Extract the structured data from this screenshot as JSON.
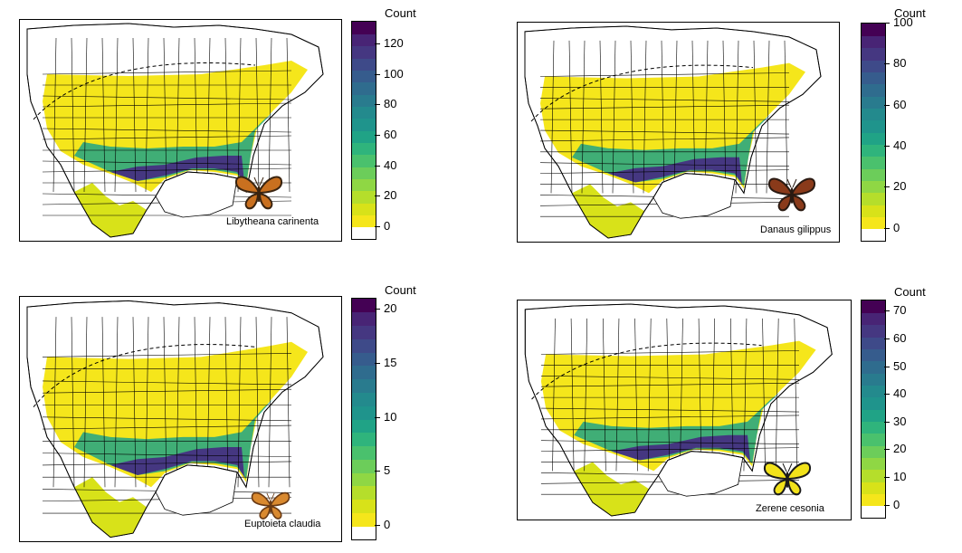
{
  "palette": [
    "#ffffff",
    "#f5e61b",
    "#d8e219",
    "#b5de2b",
    "#8fd744",
    "#6ccd5a",
    "#4ac16d",
    "#2fb47c",
    "#20a386",
    "#1f948c",
    "#238a8d",
    "#297b8e",
    "#2f6c8e",
    "#365c8d",
    "#3e4a89",
    "#453781",
    "#482475",
    "#440154"
  ],
  "panels": [
    {
      "id": "libytheana",
      "species": "Libytheana carinenta",
      "legend_title": "Count",
      "ticks": [
        0,
        20,
        40,
        60,
        80,
        100,
        120
      ],
      "max": 135,
      "butterfly_colors": {
        "wing": "#c9701f",
        "edge": "#3a2410"
      }
    },
    {
      "id": "danaus",
      "species": "Danaus gilippus",
      "legend_title": "Count",
      "ticks": [
        0,
        20,
        40,
        60,
        80,
        100
      ],
      "max": 100,
      "butterfly_colors": {
        "wing": "#8a3a1a",
        "edge": "#2a1a12"
      }
    },
    {
      "id": "euptoieta",
      "species": "Euptoieta claudia",
      "legend_title": "Count",
      "ticks": [
        0,
        5,
        10,
        15,
        20
      ],
      "max": 21,
      "butterfly_colors": {
        "wing": "#d9892f",
        "edge": "#6a3a14"
      }
    },
    {
      "id": "zerene",
      "species": "Zerene cesonia",
      "legend_title": "Count",
      "ticks": [
        0,
        10,
        20,
        30,
        40,
        50,
        60,
        70
      ],
      "max": 74,
      "butterfly_colors": {
        "wing": "#f2e21a",
        "edge": "#1a1a1a"
      }
    }
  ]
}
